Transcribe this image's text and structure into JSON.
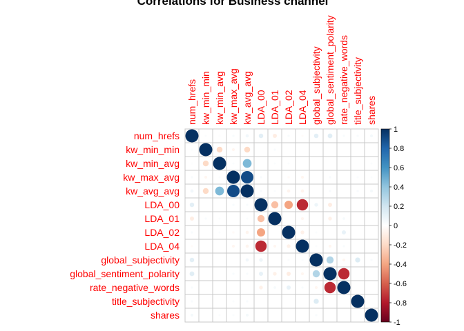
{
  "chart_data": {
    "type": "heatmap",
    "title": "Correlations for Business channel",
    "variables": [
      "num_hrefs",
      "kw_min_min",
      "kw_min_avg",
      "kw_max_avg",
      "kw_avg_avg",
      "LDA_00",
      "LDA_01",
      "LDA_02",
      "LDA_04",
      "global_subjectivity",
      "global_sentiment_polarity",
      "rate_negative_words",
      "title_subjectivity",
      "shares"
    ],
    "matrix": [
      [
        1.0,
        0.02,
        0.01,
        0.03,
        0.06,
        0.12,
        -0.1,
        0.03,
        -0.02,
        0.12,
        0.13,
        0.03,
        0.03,
        0.05
      ],
      [
        0.02,
        1.0,
        -0.2,
        -0.05,
        -0.2,
        0.0,
        0.03,
        0.0,
        0.0,
        0.0,
        0.0,
        0.0,
        0.0,
        0.0
      ],
      [
        0.01,
        -0.2,
        1.0,
        0.02,
        0.45,
        0.0,
        0.02,
        0.02,
        0.0,
        0.0,
        0.0,
        0.0,
        0.0,
        0.02
      ],
      [
        0.03,
        -0.05,
        0.02,
        1.0,
        0.9,
        0.03,
        0.0,
        -0.03,
        -0.05,
        0.0,
        0.03,
        0.0,
        0.02,
        0.02
      ],
      [
        0.06,
        -0.2,
        0.45,
        0.9,
        1.0,
        0.03,
        0.02,
        -0.06,
        -0.06,
        0.0,
        0.03,
        0.0,
        0.03,
        0.05
      ],
      [
        0.12,
        0.0,
        0.0,
        0.03,
        0.03,
        1.0,
        -0.3,
        -0.4,
        -0.75,
        0.08,
        -0.1,
        0.0,
        0.0,
        0.0
      ],
      [
        -0.1,
        0.03,
        0.02,
        0.0,
        0.02,
        -0.3,
        1.0,
        0.0,
        -0.05,
        0.0,
        -0.08,
        0.04,
        0.0,
        0.0
      ],
      [
        0.03,
        0.0,
        0.02,
        -0.03,
        -0.06,
        -0.4,
        0.0,
        1.0,
        -0.08,
        0.02,
        0.0,
        0.1,
        0.0,
        0.0
      ],
      [
        -0.02,
        0.0,
        0.0,
        -0.05,
        -0.06,
        -0.75,
        -0.05,
        -0.08,
        1.0,
        0.02,
        -0.05,
        0.03,
        0.0,
        0.0
      ],
      [
        0.12,
        0.0,
        0.0,
        0.0,
        0.06,
        0.08,
        0.0,
        0.02,
        0.02,
        1.0,
        0.3,
        -0.05,
        0.15,
        0.03
      ],
      [
        0.13,
        0.0,
        0.0,
        0.03,
        0.03,
        0.1,
        -0.08,
        -0.1,
        -0.05,
        0.3,
        1.0,
        -0.75,
        0.0,
        0.0
      ],
      [
        0.03,
        0.0,
        0.0,
        0.0,
        0.0,
        -0.08,
        0.04,
        0.1,
        0.03,
        -0.05,
        -0.75,
        1.0,
        0.0,
        0.0
      ],
      [
        0.03,
        0.0,
        0.0,
        0.02,
        0.03,
        0.0,
        0.0,
        0.0,
        0.0,
        0.15,
        0.0,
        0.0,
        1.0,
        0.0
      ],
      [
        0.05,
        0.0,
        0.02,
        0.02,
        0.05,
        0.0,
        0.0,
        0.0,
        0.0,
        0.03,
        0.0,
        0.0,
        0.0,
        1.0
      ]
    ],
    "colorbar": {
      "ticks": [
        "1",
        "0.8",
        "0.6",
        "0.4",
        "0.2",
        "0",
        "-0.2",
        "-0.4",
        "-0.6",
        "-0.8",
        "-1"
      ],
      "range": [
        -1,
        1
      ],
      "colors": [
        "#67001F",
        "#B2182B",
        "#D6604D",
        "#F4A582",
        "#FDDBC7",
        "#FFFFFF",
        "#D1E5F0",
        "#92C5DE",
        "#4393C3",
        "#2166AC",
        "#053061"
      ]
    },
    "label_color": "#FF0000",
    "grid_color": "#C8C8C8"
  }
}
